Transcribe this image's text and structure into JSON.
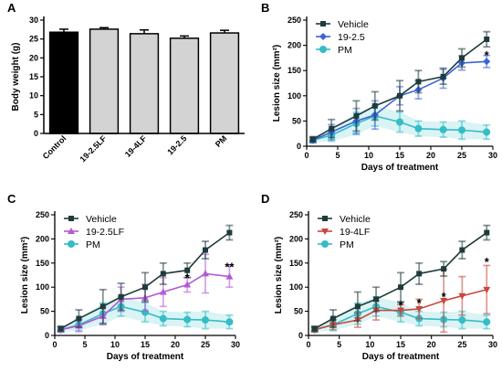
{
  "chart_data": [
    {
      "panel": "A",
      "type": "bar",
      "ylabel": "Body weight (g)",
      "xlabel": "",
      "ylim": [
        0,
        30
      ],
      "yticks": [
        0,
        5,
        10,
        15,
        20,
        25,
        30
      ],
      "categories": [
        "Control",
        "19-2.5LF",
        "19-4LF",
        "19-2.5",
        "PM"
      ],
      "values": [
        26.8,
        27.6,
        26.4,
        25.2,
        26.6
      ],
      "errors": [
        0.8,
        0.4,
        1.0,
        0.6,
        0.7
      ],
      "colors": [
        "#000000",
        "#d3d3d3",
        "#d3d3d3",
        "#d3d3d3",
        "#d3d3d3"
      ]
    },
    {
      "panel": "B",
      "type": "line",
      "xlabel": "Days of treatment",
      "ylabel": "Lesion size (mm²)",
      "xlim": [
        0,
        30
      ],
      "ylim": [
        0,
        250
      ],
      "xticks": [
        0,
        5,
        10,
        15,
        20,
        25,
        30
      ],
      "yticks": [
        0,
        50,
        100,
        150,
        200,
        250
      ],
      "legend_position": "top-left",
      "annotations": [
        {
          "text": "*",
          "x": 29,
          "y": 183
        }
      ],
      "series": [
        {
          "name": "Vehicle",
          "color": "#1f3b3b",
          "marker": "square",
          "x": [
            1,
            4,
            8,
            11,
            15,
            18,
            22,
            25,
            29
          ],
          "y": [
            14,
            35,
            60,
            80,
            100,
            128,
            138,
            175,
            212
          ],
          "err": [
            5,
            18,
            30,
            28,
            30,
            22,
            15,
            18,
            15
          ]
        },
        {
          "name": "19-2.5",
          "color": "#3d63d6",
          "marker": "diamond",
          "x": [
            1,
            4,
            8,
            11,
            15,
            18,
            22,
            25,
            29
          ],
          "y": [
            12,
            28,
            50,
            62,
            100,
            112,
            135,
            165,
            168
          ],
          "err": [
            5,
            15,
            25,
            28,
            18,
            18,
            20,
            14,
            12
          ]
        },
        {
          "name": "PM",
          "color": "#33bdc6",
          "marker": "circle",
          "x": [
            1,
            4,
            8,
            11,
            15,
            18,
            22,
            25,
            29
          ],
          "y": [
            12,
            22,
            45,
            60,
            48,
            35,
            33,
            32,
            28
          ],
          "err": [
            5,
            12,
            22,
            20,
            20,
            15,
            15,
            18,
            14
          ]
        }
      ]
    },
    {
      "panel": "C",
      "type": "line",
      "xlabel": "Days of treatment",
      "ylabel": "Lesion size (mm²)",
      "xlim": [
        0,
        30
      ],
      "ylim": [
        0,
        250
      ],
      "xticks": [
        0,
        5,
        10,
        15,
        20,
        25,
        30
      ],
      "yticks": [
        0,
        50,
        100,
        150,
        200,
        250
      ],
      "legend_position": "top-left",
      "annotations": [
        {
          "text": "*",
          "x": 22,
          "y": 122
        },
        {
          "text": "**",
          "x": 29,
          "y": 145
        }
      ],
      "series": [
        {
          "name": "Vehicle",
          "color": "#1f3b3b",
          "marker": "square",
          "x": [
            1,
            4,
            8,
            11,
            15,
            18,
            22,
            25,
            29
          ],
          "y": [
            14,
            35,
            60,
            80,
            100,
            128,
            135,
            177,
            213
          ],
          "err": [
            5,
            18,
            35,
            28,
            30,
            22,
            15,
            18,
            15
          ]
        },
        {
          "name": "19-2.5LF",
          "color": "#b35ad6",
          "marker": "triangle",
          "x": [
            1,
            4,
            8,
            11,
            15,
            18,
            22,
            25,
            29
          ],
          "y": [
            12,
            20,
            40,
            75,
            78,
            90,
            105,
            128,
            122
          ],
          "err": [
            5,
            12,
            18,
            25,
            28,
            30,
            15,
            40,
            22
          ]
        },
        {
          "name": "PM",
          "color": "#33bdc6",
          "marker": "circle",
          "x": [
            1,
            4,
            8,
            11,
            15,
            18,
            22,
            25,
            29
          ],
          "y": [
            12,
            22,
            45,
            60,
            48,
            35,
            33,
            32,
            28
          ],
          "err": [
            5,
            12,
            22,
            20,
            20,
            15,
            15,
            18,
            14
          ]
        }
      ]
    },
    {
      "panel": "D",
      "type": "line",
      "xlabel": "Days of treatment",
      "ylabel": "Lesion size (mm²)",
      "xlim": [
        0,
        30
      ],
      "ylim": [
        0,
        250
      ],
      "xticks": [
        0,
        5,
        10,
        15,
        20,
        25,
        30
      ],
      "yticks": [
        0,
        50,
        100,
        150,
        200,
        250
      ],
      "legend_position": "top-left",
      "annotations": [
        {
          "text": "*",
          "x": 15,
          "y": 65
        },
        {
          "text": "*",
          "x": 18,
          "y": 70
        },
        {
          "text": "*",
          "x": 22,
          "y": 83
        },
        {
          "text": "*",
          "x": 29,
          "y": 155
        }
      ],
      "series": [
        {
          "name": "Vehicle",
          "color": "#1f3b3b",
          "marker": "square",
          "x": [
            1,
            4,
            8,
            11,
            15,
            18,
            22,
            25,
            29
          ],
          "y": [
            14,
            35,
            60,
            75,
            100,
            128,
            138,
            177,
            213
          ],
          "err": [
            5,
            18,
            30,
            25,
            30,
            22,
            15,
            18,
            15
          ]
        },
        {
          "name": "19-4LF",
          "color": "#c8483e",
          "marker": "triangle-down",
          "x": [
            1,
            4,
            8,
            11,
            15,
            18,
            22,
            25,
            29
          ],
          "y": [
            12,
            22,
            32,
            52,
            52,
            55,
            72,
            82,
            95
          ],
          "err": [
            5,
            10,
            15,
            20,
            12,
            20,
            65,
            40,
            50
          ]
        },
        {
          "name": "PM",
          "color": "#33bdc6",
          "marker": "circle",
          "x": [
            1,
            4,
            8,
            11,
            15,
            18,
            22,
            25,
            29
          ],
          "y": [
            12,
            22,
            45,
            60,
            48,
            35,
            33,
            32,
            28
          ],
          "err": [
            5,
            12,
            22,
            20,
            20,
            15,
            15,
            18,
            14
          ]
        }
      ]
    }
  ]
}
